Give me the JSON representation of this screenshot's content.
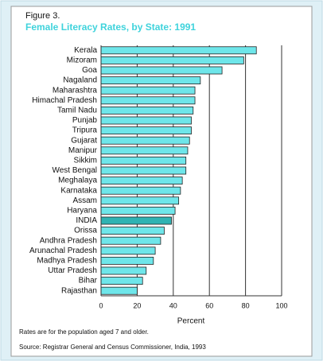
{
  "chart_data": {
    "type": "bar",
    "orientation": "horizontal",
    "title": "Figure 3.",
    "subtitle": "Female Literacy Rates, by State:  1991",
    "categories": [
      "Kerala",
      "Mizoram",
      "Goa",
      "Nagaland",
      "Maharashtra",
      "Himachal Pradesh",
      "Tamil Nadu",
      "Punjab",
      "Tripura",
      "Gujarat",
      "Manipur",
      "Sikkim",
      "West Bengal",
      "Meghalaya",
      "Karnataka",
      "Assam",
      "Haryana",
      "INDIA",
      "Orissa",
      "Andhra Pradesh",
      "Arunachal Pradesh",
      "Madhya Pradesh",
      "Uttar Pradesh",
      "Bihar",
      "Rajasthan"
    ],
    "values": [
      86,
      79,
      67,
      55,
      52,
      52,
      51,
      50,
      50,
      49,
      48,
      47,
      47,
      45,
      44,
      43,
      41,
      39,
      35,
      33,
      30,
      29,
      25,
      23,
      20
    ],
    "color": "#6ee6ea",
    "highlight_index": 17,
    "highlight_color": "#2fb3b3",
    "xlim": [
      0,
      100
    ],
    "xticks": [
      0,
      20,
      40,
      60,
      80,
      100
    ],
    "grid": true,
    "xlabel": "Percent",
    "notes": [
      "Rates are for the population aged 7 and older.",
      "Source:  Registrar General and Census Commissioner, India, 1993"
    ]
  }
}
